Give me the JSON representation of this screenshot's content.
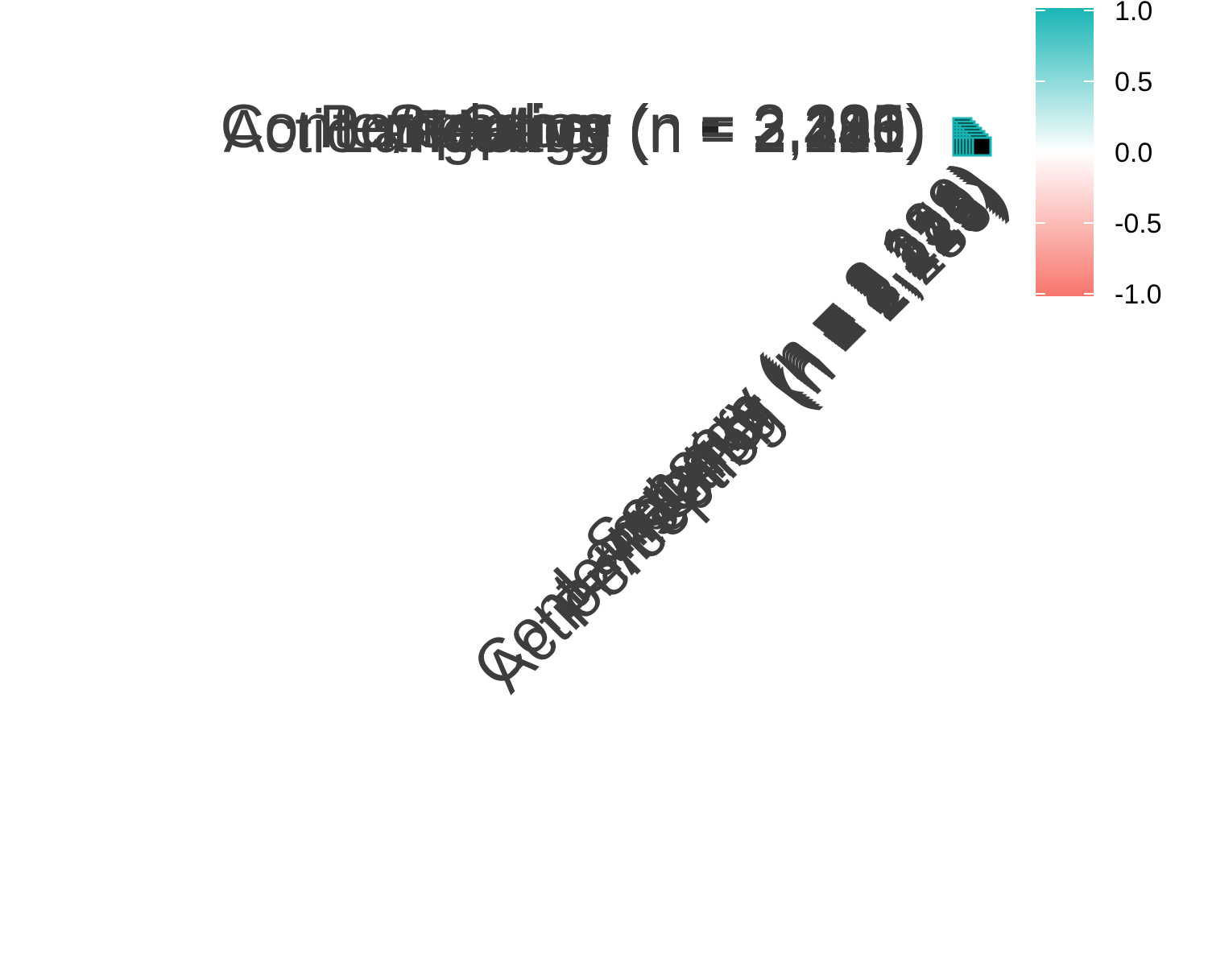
{
  "chart_data": {
    "type": "heatmap",
    "variables": [
      "Perception (n = 2,286)",
      "Action/Feeling (n = 2,445)",
      "Other (n = 3,225)",
      "Humor (n = 2,120)",
      "Contemplative (n = 2,313)",
      "Language (n = 2,251)",
      "Sensory (n = 2,199)"
    ],
    "values": [
      [
        1.0,
        null,
        null,
        null,
        null,
        null,
        null
      ],
      [
        1.0,
        1.0,
        null,
        null,
        null,
        null,
        null
      ],
      [
        1.0,
        1.0,
        1.0,
        null,
        null,
        null,
        null
      ],
      [
        1.0,
        1.0,
        1.0,
        1.0,
        null,
        null,
        null
      ],
      [
        1.0,
        1.0,
        1.0,
        1.0,
        1.0,
        null,
        null
      ],
      [
        1.0,
        1.0,
        1.0,
        1.0,
        1.0,
        1.0,
        null
      ],
      [
        1.0,
        1.0,
        1.0,
        1.0,
        1.0,
        1.0,
        1.0
      ]
    ],
    "color_scale": {
      "low": "#f8766d",
      "mid": "#ffffff",
      "high": "#19b5b5",
      "limits": [
        -1.0,
        1.0
      ]
    },
    "legend": {
      "position": "top-right",
      "ticks": [
        "1.0",
        "0.5",
        "0.0",
        "-0.5",
        "-1.0"
      ]
    },
    "tile_color": "#000000",
    "label_color": "#3d3d3d"
  }
}
